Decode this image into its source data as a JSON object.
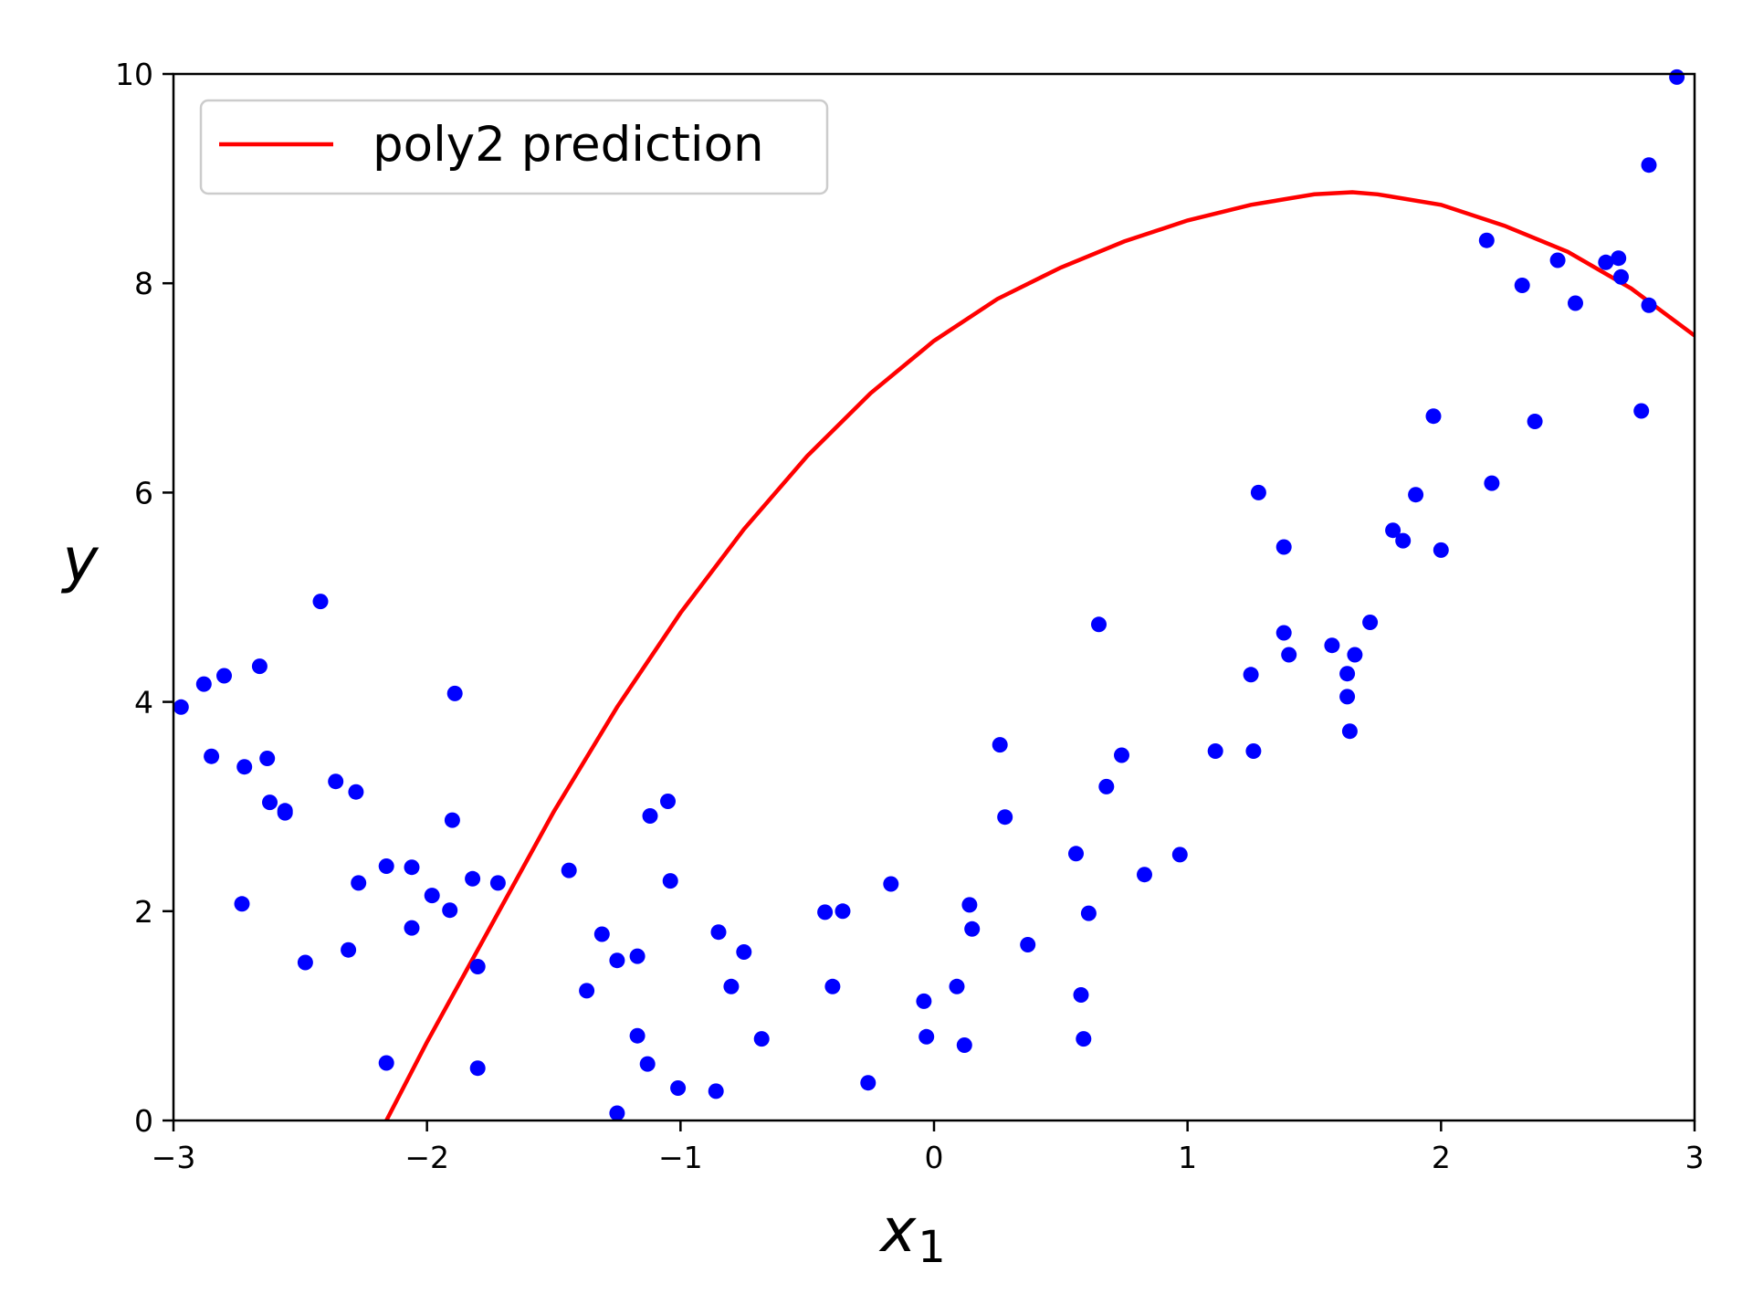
{
  "chart_data": {
    "type": "scatter",
    "xlabel": "x",
    "xlabel_subscript": "1",
    "ylabel": "y",
    "xlim": [
      -3,
      3
    ],
    "ylim": [
      0,
      10
    ],
    "xticks": [
      -3,
      -2,
      -1,
      0,
      1,
      2,
      3
    ],
    "xtick_labels": [
      "−3",
      "−2",
      "−1",
      "0",
      "1",
      "2",
      "3"
    ],
    "yticks": [
      0,
      2,
      4,
      6,
      8,
      10
    ],
    "ytick_labels": [
      "0",
      "2",
      "4",
      "6",
      "8",
      "10"
    ],
    "grid": false,
    "legend_position": "top-left",
    "legend": [
      {
        "name": "poly2 prediction",
        "color": "#ff0000"
      }
    ],
    "colors": {
      "points": "#0000ff",
      "curve": "#ff0000"
    },
    "series": [
      {
        "type": "line",
        "name": "poly2 prediction",
        "x": [
          -2.16,
          -2.0,
          -1.75,
          -1.5,
          -1.25,
          -1.0,
          -0.75,
          -0.5,
          -0.25,
          0.0,
          0.25,
          0.5,
          0.75,
          1.0,
          1.25,
          1.5,
          1.65,
          1.75,
          2.0,
          2.25,
          2.5,
          2.75,
          3.0
        ],
        "y": [
          0.0,
          0.75,
          1.85,
          2.95,
          3.95,
          4.85,
          5.65,
          6.35,
          6.95,
          7.45,
          7.85,
          8.15,
          8.4,
          8.6,
          8.75,
          8.85,
          8.87,
          8.85,
          8.75,
          8.55,
          8.3,
          7.95,
          7.5
        ]
      },
      {
        "type": "scatter",
        "x": [
          -2.97,
          -2.88,
          -2.85,
          -2.8,
          -2.73,
          -2.72,
          -2.66,
          -2.63,
          -2.62,
          -2.56,
          -2.56,
          -2.48,
          -2.42,
          -2.36,
          -2.31,
          -2.28,
          -2.27,
          -2.16,
          -2.16,
          -2.06,
          -2.06,
          -1.98,
          -1.91,
          -1.9,
          -1.89,
          -1.82,
          -1.8,
          -1.8,
          -1.72,
          -1.44,
          -1.37,
          -1.31,
          -1.25,
          -1.25,
          -1.17,
          -1.17,
          -1.13,
          -1.12,
          -1.05,
          -1.04,
          -1.01,
          -0.86,
          -0.85,
          -0.8,
          -0.75,
          -0.68,
          -0.43,
          -0.4,
          -0.36,
          -0.26,
          -0.17,
          -0.04,
          -0.03,
          0.09,
          0.12,
          0.14,
          0.15,
          0.26,
          0.28,
          0.37,
          0.56,
          0.58,
          0.59,
          0.61,
          0.65,
          0.68,
          0.74,
          0.83,
          0.97,
          1.11,
          1.25,
          1.26,
          1.28,
          1.38,
          1.38,
          1.4,
          1.57,
          1.63,
          1.63,
          1.64,
          1.66,
          1.72,
          1.81,
          1.85,
          1.9,
          1.97,
          2.0,
          2.18,
          2.2,
          2.32,
          2.37,
          2.46,
          2.53,
          2.65,
          2.7,
          2.71,
          2.79,
          2.82,
          2.82,
          2.93
        ],
        "y": [
          3.95,
          4.17,
          3.48,
          4.25,
          2.07,
          3.38,
          4.34,
          3.46,
          3.04,
          2.96,
          2.94,
          1.51,
          4.96,
          3.24,
          1.63,
          3.14,
          2.27,
          2.43,
          0.55,
          2.42,
          1.84,
          2.15,
          2.01,
          2.87,
          4.08,
          2.31,
          1.47,
          0.5,
          2.27,
          2.39,
          1.24,
          1.78,
          1.53,
          0.07,
          1.57,
          0.81,
          0.54,
          2.91,
          3.05,
          2.29,
          0.31,
          0.28,
          1.8,
          1.28,
          1.61,
          0.78,
          1.99,
          1.28,
          2.0,
          0.36,
          2.26,
          1.14,
          0.8,
          1.28,
          0.72,
          2.06,
          1.83,
          3.59,
          2.9,
          1.68,
          2.55,
          1.2,
          0.78,
          1.98,
          4.74,
          3.19,
          3.49,
          2.35,
          2.54,
          3.53,
          4.26,
          3.53,
          6.0,
          5.48,
          4.66,
          4.45,
          4.54,
          4.27,
          4.05,
          3.72,
          4.45,
          4.76,
          5.64,
          5.54,
          5.98,
          6.73,
          5.45,
          8.41,
          6.09,
          7.98,
          6.68,
          8.22,
          7.81,
          8.2,
          8.24,
          8.06,
          6.78,
          9.13,
          7.79,
          9.97
        ]
      }
    ]
  }
}
